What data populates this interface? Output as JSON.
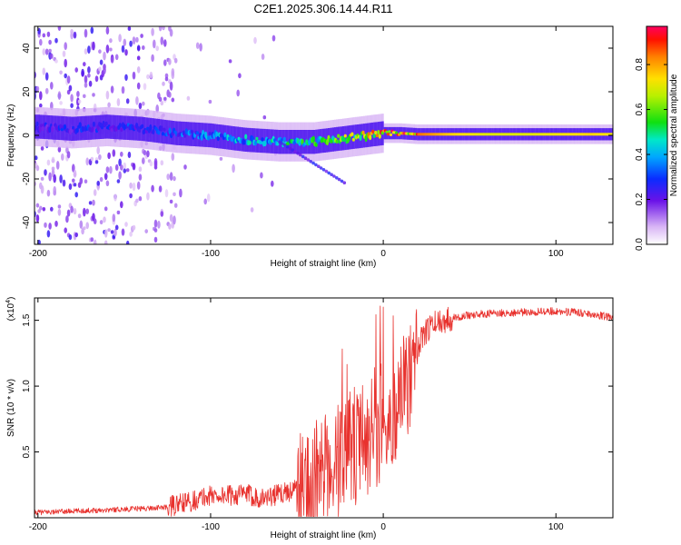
{
  "title": "C2E1.2025.306.14.44.R11",
  "chart_data": [
    {
      "type": "heatmap",
      "name": "spectrogram",
      "xlabel": "Height of straight line (km)",
      "ylabel": "Frequency (Hz)",
      "xlim": [
        -202,
        133
      ],
      "ylim": [
        -50,
        50
      ],
      "xticks": [
        -200,
        -100,
        0,
        100
      ],
      "xtick_labels": [
        "-200",
        "-100",
        "0",
        "100"
      ],
      "yticks": [
        -40,
        -20,
        0,
        20,
        40
      ],
      "ytick_labels": [
        "-40",
        "-20",
        "0",
        "20",
        "40"
      ],
      "colorbar": {
        "label": "Normalized spectral amplitude",
        "range": [
          0,
          0.97
        ],
        "ticks": [
          0,
          0.2,
          0.4,
          0.6,
          0.8
        ],
        "tick_labels": [
          "0.0",
          "0.2",
          "0.4",
          "0.6",
          "0.8"
        ]
      },
      "ridge": {
        "heights_km": [
          -200,
          -180,
          -160,
          -140,
          -120,
          -100,
          -80,
          -60,
          -40,
          -30,
          -20,
          -10,
          0,
          10,
          20,
          40,
          60,
          80,
          100,
          120,
          133
        ],
        "center_freq_hz": [
          4,
          3,
          4,
          3,
          1,
          0,
          -2,
          -3,
          -3,
          -2,
          -1,
          0,
          1,
          1,
          0.5,
          0.5,
          0.5,
          0.5,
          0.5,
          0.5,
          0.5
        ],
        "peak_amplitude": [
          0.25,
          0.28,
          0.3,
          0.32,
          0.35,
          0.4,
          0.45,
          0.5,
          0.55,
          0.6,
          0.7,
          0.8,
          0.9,
          0.95,
          0.85,
          0.75,
          0.7,
          0.7,
          0.72,
          0.75,
          0.72
        ]
      }
    },
    {
      "type": "line",
      "name": "snr",
      "xlabel": "Height of straight line (km)",
      "ylabel": "SNR (10 * v/v)",
      "multiplier_label": "(x10",
      "multiplier_exp": "4",
      "multiplier_close": ")",
      "xlim": [
        -202,
        133
      ],
      "ylim": [
        0,
        1.67
      ],
      "xticks": [
        -200,
        -100,
        0,
        100
      ],
      "xtick_labels": [
        "-200",
        "-100",
        "0",
        "100"
      ],
      "yticks": [
        0.5,
        1.0,
        1.5
      ],
      "ytick_labels": [
        "0.5",
        "1.0",
        "1.5"
      ],
      "color": "#e8322e",
      "trend": {
        "x": [
          -202,
          -180,
          -160,
          -140,
          -125,
          -110,
          -100,
          -90,
          -80,
          -70,
          -60,
          -50,
          -40,
          -30,
          -25,
          -20,
          -15,
          -10,
          -5,
          0,
          5,
          10,
          15,
          20,
          25,
          30,
          40,
          50,
          60,
          80,
          100,
          120,
          133
        ],
        "y": [
          0.04,
          0.05,
          0.06,
          0.07,
          0.08,
          0.13,
          0.17,
          0.17,
          0.18,
          0.15,
          0.18,
          0.22,
          0.28,
          0.38,
          0.45,
          0.5,
          0.55,
          0.6,
          0.65,
          0.75,
          0.8,
          0.95,
          1.1,
          1.3,
          1.42,
          1.48,
          1.52,
          1.54,
          1.55,
          1.56,
          1.57,
          1.55,
          1.52
        ]
      }
    }
  ]
}
